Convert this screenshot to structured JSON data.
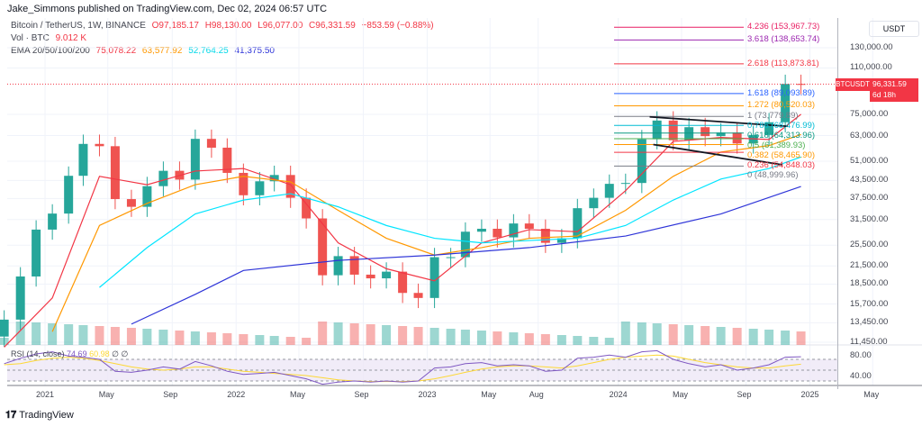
{
  "header": {
    "published": "Jake_Simmons published on TradingView.com, Dec 02, 2024 06:57 UTC"
  },
  "legend": {
    "symbol": "Bitcoin / TetherUS, 1W, BINANCE",
    "open": "O97,185.17",
    "high": "H98,130.00",
    "low": "L96,077.00",
    "close": "C96,331.59",
    "change": "−853.59 (−0.88%)",
    "vol_label": "Vol · BTC",
    "vol_value": "9.012 K",
    "ema_label": "EMA 20/50/100/200",
    "ema20": "75,078.22",
    "ema50": "63,577.92",
    "ema100": "52,764.25",
    "ema200": "41,375.50"
  },
  "price_axis": {
    "currency": "USDT",
    "ticks": [
      "130,000.00",
      "110,000.00",
      "75,000.00",
      "63,000.00",
      "51,000.00",
      "43,500.00",
      "37,500.00",
      "31,500.00",
      "25,500.00",
      "21,500.00",
      "18,500.00",
      "15,700.00",
      "13,450.00",
      "11,450.00"
    ],
    "tick_values": [
      130000,
      110000,
      75000,
      63000,
      51000,
      43500,
      37500,
      31500,
      25500,
      21500,
      18500,
      15700,
      13450,
      11450
    ],
    "scale": "log"
  },
  "price_tag": {
    "symbol": "BTCUSDT",
    "price": "96,331.59",
    "countdown": "6d 18h",
    "color": "#f23645"
  },
  "rsi": {
    "label": "RSI (14, close)",
    "value": "74.69",
    "ma_value": "60.98",
    "icons": "∅ ∅",
    "ticks": [
      "80.00",
      "40.00"
    ]
  },
  "time_axis": {
    "ticks": [
      [
        "2021",
        "2021-01-01"
      ],
      [
        "May",
        "2021-05-01"
      ],
      [
        "Sep",
        "2021-09-01"
      ],
      [
        "2022",
        "2022-01-01"
      ],
      [
        "May",
        "2022-05-01"
      ],
      [
        "Sep",
        "2022-09-01"
      ],
      [
        "2023",
        "2023-01-01"
      ],
      [
        "May",
        "2023-05-01"
      ],
      [
        "Aug",
        "2023-08-01"
      ],
      [
        "2024",
        "2024-01-01"
      ],
      [
        "May",
        "2024-05-01"
      ],
      [
        "Sep",
        "2024-09-01"
      ],
      [
        "2025",
        "2025-01-01"
      ],
      [
        "May",
        "2025-05-01"
      ]
    ]
  },
  "footer": {
    "brand": "TradingView"
  },
  "chart_data": {
    "type": "candlestick",
    "title": "Bitcoin / TetherUS, 1W, BINANCE",
    "yscale": "log",
    "ylim": [
      11000,
      160000
    ],
    "grid": true,
    "colors": {
      "up": "#26a69a",
      "down": "#ef5350",
      "ema20": "#f23645",
      "ema50": "#ff9800",
      "ema100": "#00e5ff",
      "ema200": "#2f35d8",
      "rsi": "#7e57c2",
      "rsi_ma": "#fdd835"
    },
    "dates": [
      "2020-10",
      "2020-11",
      "2020-12",
      "2021-01",
      "2021-02",
      "2021-03",
      "2021-04",
      "2021-05",
      "2021-06",
      "2021-07",
      "2021-08",
      "2021-09",
      "2021-10",
      "2021-11",
      "2021-12",
      "2022-01",
      "2022-02",
      "2022-03",
      "2022-04",
      "2022-05",
      "2022-06",
      "2022-07",
      "2022-08",
      "2022-09",
      "2022-10",
      "2022-11",
      "2022-12",
      "2023-01",
      "2023-02",
      "2023-03",
      "2023-04",
      "2023-05",
      "2023-06",
      "2023-07",
      "2023-08",
      "2023-09",
      "2023-10",
      "2023-11",
      "2023-12",
      "2024-01",
      "2024-02",
      "2024-03",
      "2024-04",
      "2024-05",
      "2024-06",
      "2024-07",
      "2024-08",
      "2024-09",
      "2024-10",
      "2024-11",
      "2024-12"
    ],
    "close": [
      13800,
      19700,
      29000,
      33100,
      45200,
      58800,
      57700,
      37300,
      35000,
      41500,
      47100,
      43800,
      61300,
      57000,
      46300,
      38500,
      43200,
      45500,
      37700,
      31800,
      19900,
      23300,
      20000,
      19400,
      20500,
      17200,
      16500,
      23100,
      23100,
      28500,
      29200,
      27200,
      30500,
      29200,
      26000,
      27000,
      34600,
      37700,
      42300,
      42600,
      61100,
      71300,
      60600,
      67500,
      62700,
      64600,
      59000,
      63300,
      70300,
      96400,
      96331
    ],
    "ema20": {
      "dates": [
        "2020-10",
        "2021-01",
        "2021-04",
        "2021-07",
        "2021-10",
        "2022-01",
        "2022-04",
        "2022-07",
        "2022-10",
        "2023-01",
        "2023-04",
        "2023-07",
        "2023-10",
        "2024-01",
        "2024-04",
        "2024-07",
        "2024-10",
        "2024-12"
      ],
      "values": [
        11000,
        16500,
        45000,
        42000,
        47000,
        48000,
        42000,
        26000,
        21000,
        19000,
        26000,
        29000,
        28500,
        40000,
        60000,
        62000,
        61000,
        75078.22
      ]
    },
    "ema50": {
      "dates": [
        "2021-01",
        "2021-04",
        "2021-07",
        "2021-10",
        "2022-01",
        "2022-04",
        "2022-07",
        "2022-10",
        "2023-01",
        "2023-04",
        "2023-07",
        "2023-10",
        "2024-01",
        "2024-04",
        "2024-07",
        "2024-10",
        "2024-12"
      ],
      "values": [
        12500,
        30000,
        36000,
        42000,
        45000,
        43000,
        34000,
        27000,
        23500,
        25000,
        27000,
        27500,
        34000,
        45000,
        55000,
        58000,
        63577.92
      ]
    },
    "ema100": {
      "dates": [
        "2021-04",
        "2021-07",
        "2021-10",
        "2022-01",
        "2022-04",
        "2022-07",
        "2022-10",
        "2023-01",
        "2023-04",
        "2023-07",
        "2023-10",
        "2024-01",
        "2024-04",
        "2024-07",
        "2024-10",
        "2024-12"
      ],
      "values": [
        18000,
        25000,
        33000,
        37000,
        39000,
        35000,
        30000,
        27000,
        26000,
        26500,
        27000,
        30000,
        37000,
        44000,
        48000,
        52764.25
      ]
    },
    "ema200": {
      "dates": [
        "2021-06",
        "2021-10",
        "2022-01",
        "2022-07",
        "2023-01",
        "2023-07",
        "2024-01",
        "2024-07",
        "2024-12"
      ],
      "values": [
        13300,
        17000,
        20700,
        22500,
        23500,
        25000,
        27500,
        33000,
        41375.5
      ]
    },
    "fib_levels": [
      {
        "ratio": "4.236",
        "value": "153,967.73",
        "price": 153967.73,
        "color": "#e91e63"
      },
      {
        "ratio": "3.618",
        "value": "138,653.74",
        "price": 138653.74,
        "color": "#9c27b0"
      },
      {
        "ratio": "2.618",
        "value": "113,873.81",
        "price": 113873.81,
        "color": "#f23645"
      },
      {
        "ratio": "1.618",
        "value": "89,093.89",
        "price": 89093.89,
        "color": "#2962ff"
      },
      {
        "ratio": "1.272",
        "value": "80,520.03",
        "price": 80520.03,
        "color": "#ff9800"
      },
      {
        "ratio": "1",
        "value": "73,779.89",
        "price": 73779.89,
        "color": "#787b86"
      },
      {
        "ratio": "0.786",
        "value": "68,476.99",
        "price": 68476.99,
        "color": "#00bcd4"
      },
      {
        "ratio": "0.618",
        "value": "64,313.96",
        "price": 64313.96,
        "color": "#089981"
      },
      {
        "ratio": "0.5",
        "value": "61,389.93",
        "price": 61389.93,
        "color": "#4caf50"
      },
      {
        "ratio": "0.382",
        "value": "58,465.90",
        "price": 58465.9,
        "color": "#ff9800"
      },
      {
        "ratio": "0.236",
        "value": "54,848.03",
        "price": 54848.03,
        "color": "#f23645"
      },
      {
        "ratio": "0",
        "value": "48,999.96",
        "price": 48999.96,
        "color": "#787b86"
      }
    ],
    "trendlines": [
      {
        "from": [
          "2024-03-01",
          73500
        ],
        "to": [
          "2024-11-20",
          68000
        ]
      },
      {
        "from": [
          "2024-03-08",
          58500
        ],
        "to": [
          "2024-11-10",
          49500
        ]
      }
    ],
    "rsi_values": [
      62,
      72,
      80,
      84,
      76,
      74,
      70,
      48,
      46,
      50,
      56,
      52,
      66,
      58,
      48,
      42,
      44,
      46,
      40,
      34,
      24,
      28,
      30,
      28,
      30,
      28,
      30,
      54,
      56,
      62,
      64,
      58,
      60,
      58,
      48,
      50,
      72,
      74,
      78,
      74,
      84,
      86,
      70,
      62,
      56,
      60,
      50,
      54,
      60,
      74,
      74.69
    ],
    "rsi_ma": [
      60,
      62,
      68,
      72,
      74,
      72,
      68,
      62,
      56,
      52,
      50,
      52,
      56,
      56,
      52,
      48,
      46,
      44,
      42,
      40,
      36,
      32,
      30,
      29,
      29,
      29,
      30,
      34,
      40,
      46,
      52,
      56,
      58,
      58,
      56,
      54,
      58,
      64,
      70,
      74,
      76,
      78,
      76,
      70,
      64,
      60,
      56,
      54,
      54,
      58,
      60.98
    ]
  }
}
